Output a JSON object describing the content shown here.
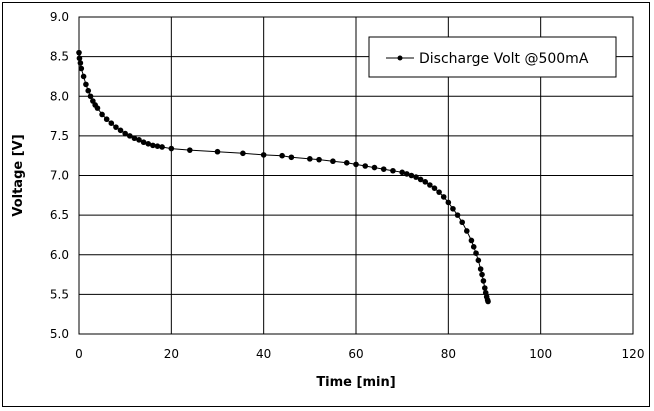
{
  "chart_data": {
    "type": "line",
    "title": "",
    "xlabel": "Time [min]",
    "ylabel": "Voltage [V]",
    "xlim": [
      0,
      120
    ],
    "ylim": [
      5.0,
      9.0
    ],
    "xticks": [
      "0",
      "20",
      "40",
      "60",
      "80",
      "100",
      "120"
    ],
    "yticks": [
      "5.0",
      "5.5",
      "6.0",
      "6.5",
      "7.0",
      "7.5",
      "8.0",
      "8.5",
      "9.0"
    ],
    "grid": true,
    "legend_position": "top-right",
    "series": [
      {
        "name": "Discharge Volt @500mA",
        "color": "#000000",
        "marker": "circle",
        "x": [
          0.0,
          0.1,
          0.3,
          0.5,
          1.0,
          1.5,
          2.0,
          2.5,
          3.0,
          3.5,
          4.0,
          5.0,
          6.0,
          7.0,
          8.0,
          9.0,
          10.0,
          11.0,
          12.0,
          13.0,
          14.0,
          15.0,
          16.0,
          17.0,
          18.0,
          20.0,
          24.0,
          30.0,
          35.5,
          40.0,
          44.0,
          46.0,
          50.0,
          52.0,
          55.0,
          58.0,
          60.0,
          62.0,
          64.0,
          66.0,
          68.0,
          70.0,
          71.0,
          72.0,
          73.0,
          74.0,
          75.0,
          76.0,
          77.0,
          78.0,
          79.0,
          80.0,
          81.0,
          82.0,
          83.0,
          84.0,
          85.0,
          85.5,
          86.0,
          86.5,
          87.0,
          87.3,
          87.6,
          87.9,
          88.1,
          88.3,
          88.5,
          88.6
        ],
        "y": [
          8.55,
          8.48,
          8.42,
          8.35,
          8.25,
          8.15,
          8.07,
          8.0,
          7.94,
          7.89,
          7.85,
          7.77,
          7.71,
          7.66,
          7.61,
          7.57,
          7.53,
          7.5,
          7.47,
          7.45,
          7.42,
          7.4,
          7.38,
          7.37,
          7.36,
          7.34,
          7.32,
          7.3,
          7.28,
          7.26,
          7.25,
          7.23,
          7.21,
          7.2,
          7.18,
          7.16,
          7.14,
          7.12,
          7.1,
          7.08,
          7.06,
          7.04,
          7.02,
          7.0,
          6.98,
          6.95,
          6.92,
          6.88,
          6.84,
          6.79,
          6.73,
          6.66,
          6.58,
          6.5,
          6.41,
          6.3,
          6.18,
          6.1,
          6.02,
          5.93,
          5.82,
          5.75,
          5.67,
          5.58,
          5.52,
          5.47,
          5.43,
          5.41
        ]
      }
    ]
  }
}
